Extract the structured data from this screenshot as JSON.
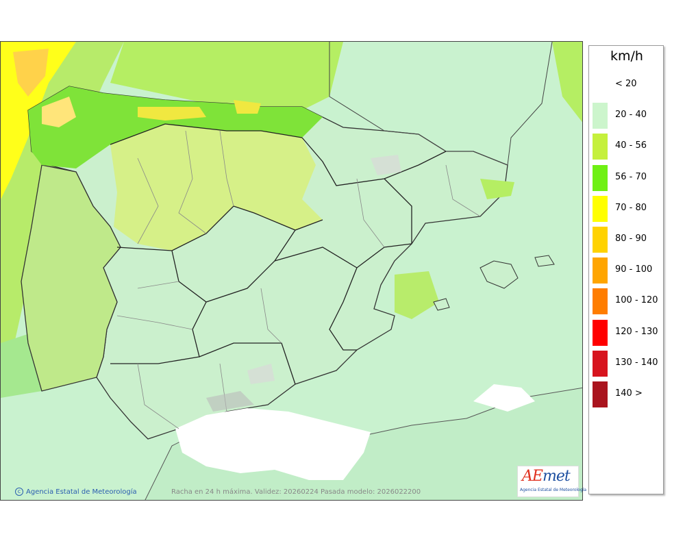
{
  "legend": {
    "unit": "km/h",
    "items": [
      {
        "label": "< 20",
        "color": "#ffffff"
      },
      {
        "label": "20 - 40",
        "color": "#ccf5cc"
      },
      {
        "label": "40 - 56",
        "color": "#c5f03c"
      },
      {
        "label": "56 - 70",
        "color": "#6ff014"
      },
      {
        "label": "70 - 80",
        "color": "#ffff00"
      },
      {
        "label": "80 - 90",
        "color": "#ffd200"
      },
      {
        "label": "90 - 100",
        "color": "#ffa500"
      },
      {
        "label": "100 - 120",
        "color": "#ff7d00"
      },
      {
        "label": "120 - 130",
        "color": "#ff0000"
      },
      {
        "label": "130 - 140",
        "color": "#d7141e"
      },
      {
        "label": "140 >",
        "color": "#aa141e"
      }
    ]
  },
  "footer": {
    "credit": "Agencia Estatal de Meteorología",
    "caption": "Racha en 24 h máxima. Validez: 20260224 Pasada modelo: 2026022200"
  },
  "logo": {
    "word_a": "AE",
    "word_b": "met",
    "subtitle": "Agencia Estatal de Meteorología"
  }
}
